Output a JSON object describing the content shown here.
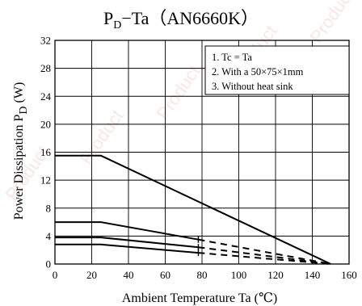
{
  "chart_data": {
    "type": "line",
    "title": {
      "main": "P",
      "sub": "D",
      "rest": "−Ta（AN6660K）"
    },
    "xlabel": "Ambient Temperature  Ta  (℃)",
    "ylabel": {
      "main": "Power Dissipation  P",
      "sub": "D",
      "rest": "  (W)"
    },
    "xlim": [
      0,
      160
    ],
    "ylim": [
      0,
      32
    ],
    "xticks": [
      0,
      20,
      40,
      60,
      80,
      100,
      120,
      140,
      160
    ],
    "yticks": [
      0,
      4,
      8,
      12,
      16,
      20,
      24,
      28,
      32
    ],
    "grid": true,
    "notes": [
      "1. Tc = Ta",
      "2. With a 50×75×1mm",
      "3. Without heat sink"
    ],
    "series": [
      {
        "points": [
          [
            0,
            15.5
          ],
          [
            25,
            15.5
          ],
          [
            150,
            0
          ]
        ],
        "dashed_from_x": null
      },
      {
        "points": [
          [
            0,
            6
          ],
          [
            25,
            6
          ],
          [
            78,
            3.5
          ],
          [
            150,
            0
          ]
        ],
        "dashed_from_x": 78
      },
      {
        "points": [
          [
            0,
            3.8
          ],
          [
            25,
            3.8
          ],
          [
            78,
            2.4
          ],
          [
            150,
            0
          ]
        ],
        "dashed_from_x": 78
      },
      {
        "points": [
          [
            0,
            2.8
          ],
          [
            25,
            2.8
          ],
          [
            78,
            1.6
          ],
          [
            150,
            0
          ]
        ],
        "dashed_from_x": 78
      }
    ],
    "watermark": [
      "Product",
      "Product",
      "Product",
      "Product",
      "Product"
    ],
    "watermark_rotate_deg": -55,
    "colors": {
      "line": "#000000",
      "grid": "#000000",
      "watermark": "#f3b7bc"
    }
  }
}
